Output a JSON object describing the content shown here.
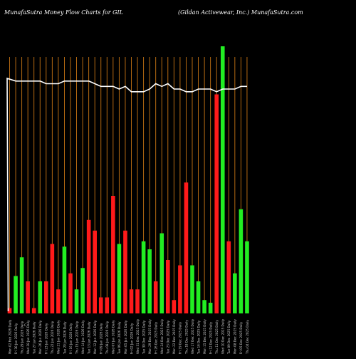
{
  "header": {
    "left_title": "MunafaSutra  Money Flow  Charts for GIL",
    "right_title": "(Gildan  Activewear,  Inc.) MunafaSutra.com"
  },
  "colors": {
    "background": "#000000",
    "up": "#22ee22",
    "down": "#ff1a1a",
    "grid": "#c87514",
    "line": "#ffffff"
  },
  "chart_data": {
    "type": "bar",
    "title": "MunafaSutra  Money Flow  Charts for GIL",
    "subtitle": "(Gildan  Activewear,  Inc.) MunafaSutra.com",
    "grid": true,
    "y_axis_visible": false,
    "first_label_extra": "C",
    "bars": [
      {
        "x": "Mon 02 Feb 2026 Daily",
        "value": 2,
        "dir": "down",
        "line": 88
      },
      {
        "x": "Fri 30 Jan 2026 Daily",
        "value": 14,
        "dir": "up",
        "line": 87
      },
      {
        "x": "Thu 29 Jan 2026 Daily",
        "value": 21,
        "dir": "up",
        "line": 87
      },
      {
        "x": "Wed 28 Jan 2026 Daily",
        "value": 12,
        "dir": "down",
        "line": 87
      },
      {
        "x": "Tue 27 Jan 2026 Daily",
        "value": 2,
        "dir": "down",
        "line": 87
      },
      {
        "x": "Mon 26 Jan 2026 Daily",
        "value": 12,
        "dir": "up",
        "line": 87
      },
      {
        "x": "Fri 23 Jan 2026 Daily",
        "value": 12,
        "dir": "down",
        "line": 86
      },
      {
        "x": "Thu 22 Jan 2026 Daily",
        "value": 26,
        "dir": "down",
        "line": 86
      },
      {
        "x": "Wed 21 Jan 2026 Daily",
        "value": 9,
        "dir": "down",
        "line": 86
      },
      {
        "x": "Tue 20 Jan 2026 Daily",
        "value": 25,
        "dir": "up",
        "line": 87
      },
      {
        "x": "Fri 16 Jan 2026 Daily",
        "value": 15,
        "dir": "down",
        "line": 87
      },
      {
        "x": "Thu 15 Jan 2026 Daily",
        "value": 9,
        "dir": "up",
        "line": 87
      },
      {
        "x": "Wed 14 Jan 2026 Daily",
        "value": 17,
        "dir": "up",
        "line": 87
      },
      {
        "x": "Tue 13 Jan 2026 Daily",
        "value": 35,
        "dir": "down",
        "line": 87
      },
      {
        "x": "Mon 12 Jan 2026 Daily",
        "value": 31,
        "dir": "down",
        "line": 86
      },
      {
        "x": "Fri 09 Jan 2026 Daily",
        "value": 6,
        "dir": "down",
        "line": 85
      },
      {
        "x": "Thu 08 Jan 2026 Daily",
        "value": 6,
        "dir": "down",
        "line": 85
      },
      {
        "x": "Wed 07 Jan 2026 Daily",
        "value": 44,
        "dir": "down",
        "line": 85
      },
      {
        "x": "Tue 06 Jan 2026 Daily",
        "value": 26,
        "dir": "up",
        "line": 84
      },
      {
        "x": "Mon 05 Jan 2026 Daily",
        "value": 31,
        "dir": "down",
        "line": 85
      },
      {
        "x": "Fri 02 Jan 2026 Daily",
        "value": 9,
        "dir": "down",
        "line": 83
      },
      {
        "x": "Wed 31 Dec 2025 Daily",
        "value": 9,
        "dir": "down",
        "line": 83
      },
      {
        "x": "Tue 30 Dec 2025 Daily",
        "value": 27,
        "dir": "up",
        "line": 83
      },
      {
        "x": "Mon 29 Dec 2025 Daily",
        "value": 24,
        "dir": "up",
        "line": 84
      },
      {
        "x": "Fri 26 Dec 2025 Daily",
        "value": 12,
        "dir": "down",
        "line": 86
      },
      {
        "x": "Wed 24 Dec 2025 Daily",
        "value": 30,
        "dir": "up",
        "line": 85
      },
      {
        "x": "Tue 23 Dec 2025 Daily",
        "value": 20,
        "dir": "down",
        "line": 86
      },
      {
        "x": "Mon 22 Dec 2025 Daily",
        "value": 5,
        "dir": "down",
        "line": 84
      },
      {
        "x": "Fri 19 Dec 2025 Daily",
        "value": 18,
        "dir": "down",
        "line": 84
      },
      {
        "x": "Thu 18 Dec 2025 Daily",
        "value": 49,
        "dir": "down",
        "line": 83
      },
      {
        "x": "Wed 17 Dec 2025 Daily",
        "value": 18,
        "dir": "up",
        "line": 83
      },
      {
        "x": "Tue 16 Dec 2025 Daily",
        "value": 12,
        "dir": "up",
        "line": 84
      },
      {
        "x": "Mon 15 Dec 2025 Daily",
        "value": 5,
        "dir": "up",
        "line": 84
      },
      {
        "x": "Fri 12 Dec 2025 Daily",
        "value": 4,
        "dir": "up",
        "line": 84
      },
      {
        "x": "Thu 11 Dec 2025 Daily",
        "value": 82,
        "dir": "down",
        "line": 83
      },
      {
        "x": "Wed 10 Dec 2025 Daily",
        "value": 100,
        "dir": "up",
        "line": 84
      },
      {
        "x": "Tue 09 Dec 2025 Daily",
        "value": 27,
        "dir": "down",
        "line": 84
      },
      {
        "x": "Mon 08 Dec 2025 Daily",
        "value": 15,
        "dir": "up",
        "line": 84
      },
      {
        "x": "Fri 05 Dec 2025 Daily",
        "value": 39,
        "dir": "up",
        "line": 85
      },
      {
        "x": "Thu 04 Dec 2025 Daily",
        "value": 27,
        "dir": "up",
        "line": 85
      }
    ]
  }
}
